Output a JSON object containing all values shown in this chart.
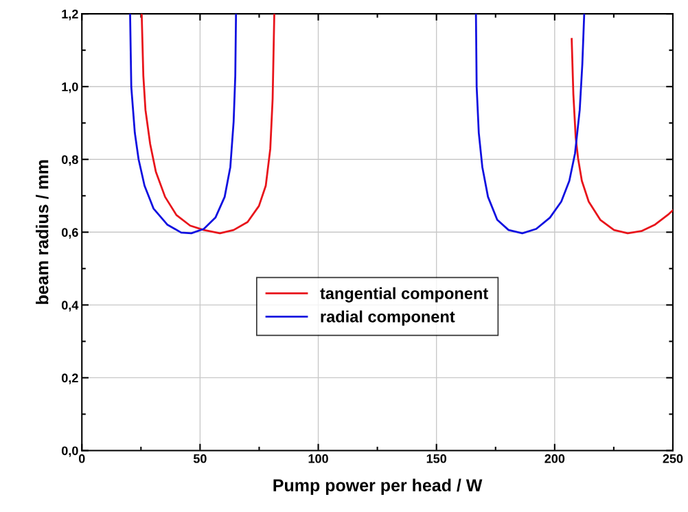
{
  "chart_data": {
    "type": "line",
    "xlabel": "Pump power per head / W",
    "ylabel": "beam radius / mm",
    "series": [
      {
        "name": "tangential component",
        "color": "#e8141b",
        "x": [
          25.3,
          26.0,
          26.9,
          28.9,
          31.3,
          35.2,
          40.0,
          45.8,
          51.6,
          58.4,
          64.2,
          70.1,
          74.9,
          77.8,
          79.7,
          80.7,
          81.4,
          null,
          207.2,
          207.9,
          208.9,
          209.9,
          211.5,
          214.4,
          219.3,
          225.1,
          230.9,
          236.7,
          242.5,
          248.3,
          250
        ],
        "values": [
          1.2,
          1.03,
          0.936,
          0.842,
          0.766,
          0.697,
          0.647,
          0.618,
          0.606,
          0.597,
          0.606,
          0.628,
          0.672,
          0.728,
          0.829,
          0.967,
          1.2,
          null,
          1.131,
          0.98,
          0.86,
          0.803,
          0.741,
          0.684,
          0.634,
          0.606,
          0.597,
          0.603,
          0.621,
          0.65,
          0.66
        ]
      },
      {
        "name": "radial component",
        "color": "#1010e0",
        "x": [
          20.4,
          20.9,
          22.4,
          24.0,
          26.5,
          30.3,
          36.1,
          42.0,
          46.3,
          51.6,
          56.5,
          60.4,
          62.8,
          64.2,
          64.9,
          65.2,
          null,
          166.7,
          167.0,
          167.9,
          169.4,
          171.8,
          175.7,
          180.5,
          186.3,
          192.2,
          198.0,
          202.8,
          206.2,
          208.6,
          210.6,
          211.7,
          212.5
        ],
        "values": [
          1.2,
          0.999,
          0.873,
          0.8,
          0.728,
          0.665,
          0.621,
          0.599,
          0.597,
          0.609,
          0.64,
          0.697,
          0.779,
          0.904,
          1.03,
          1.2,
          null,
          1.2,
          1.0,
          0.873,
          0.779,
          0.697,
          0.634,
          0.606,
          0.597,
          0.609,
          0.64,
          0.684,
          0.741,
          0.816,
          0.936,
          1.062,
          1.2
        ]
      }
    ],
    "xlim": [
      0,
      250
    ],
    "xticks": [
      0,
      50,
      100,
      150,
      200,
      250
    ],
    "ylim": [
      0,
      1.2
    ],
    "yticks": [
      {
        "value": 0,
        "label": "0,0"
      },
      {
        "value": 0.2,
        "label": "0,2"
      },
      {
        "value": 0.4,
        "label": "0,4"
      },
      {
        "value": 0.6,
        "label": "0,6"
      },
      {
        "value": 0.8,
        "label": "0,8"
      },
      {
        "value": 1.0,
        "label": "1,0"
      },
      {
        "value": 1.2,
        "label": "1,2"
      }
    ],
    "grid": true,
    "legend": "center",
    "marker": "none",
    "line_style": "solid"
  }
}
